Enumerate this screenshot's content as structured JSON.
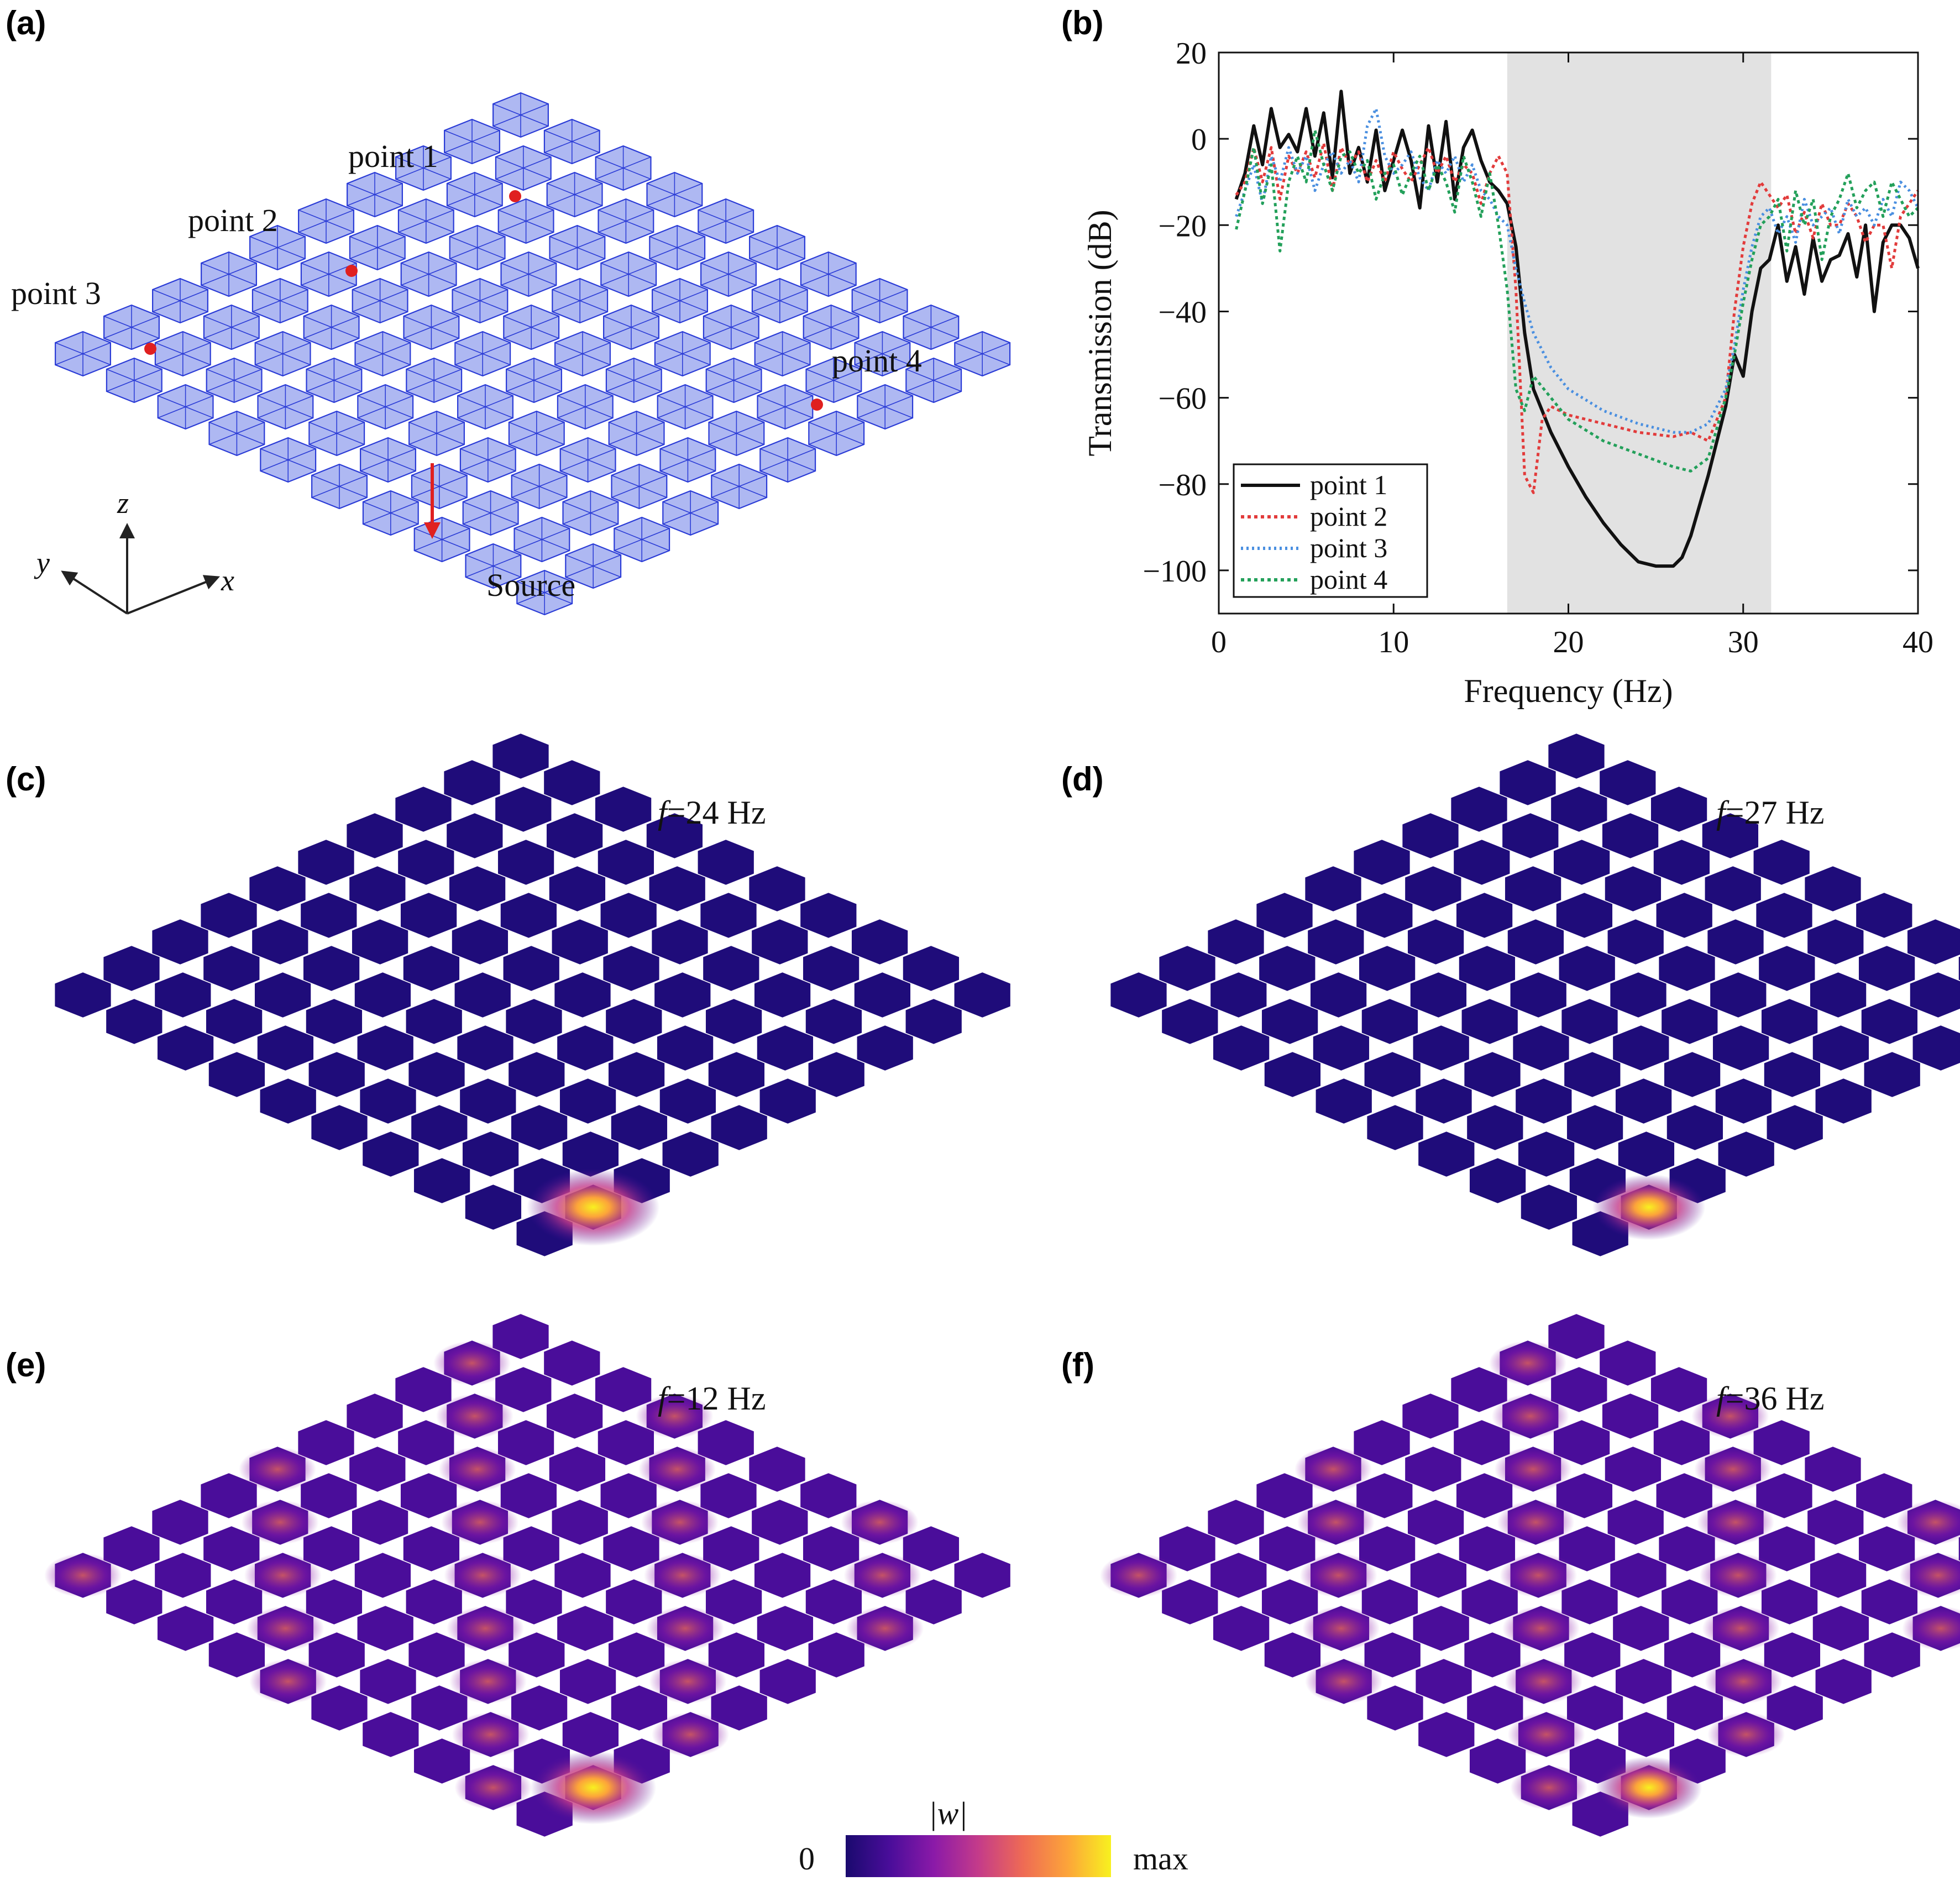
{
  "figure": {
    "panels": {
      "a": {
        "label": "(a)",
        "points": [
          "point 1",
          "point 2",
          "point 3",
          "point 4"
        ],
        "source_label": "Source",
        "axes": {
          "x": "x",
          "y": "y",
          "z": "z"
        },
        "colors": {
          "plate": "#aeb8f2",
          "edge": "#2a3bd6",
          "marker": "#e02020"
        }
      },
      "b": {
        "label": "(b)"
      },
      "c": {
        "label": "(c)",
        "freq_prefix": "f",
        "freq_value": "=24 Hz",
        "source_intensity": 1.0,
        "field": "localized"
      },
      "d": {
        "label": "(d)",
        "freq_prefix": "f",
        "freq_value": "=27 Hz",
        "source_intensity": 0.85,
        "field": "localized"
      },
      "e": {
        "label": "(e)",
        "freq_prefix": "f",
        "freq_value": "=12 Hz",
        "source_intensity": 0.95,
        "field": "propagating"
      },
      "f": {
        "label": "(f)",
        "freq_prefix": "f",
        "freq_value": "=36 Hz",
        "source_intensity": 0.8,
        "field": "propagating"
      }
    },
    "colorbar": {
      "title": "|w|",
      "min_label": "0",
      "max_label": "max",
      "stops": [
        "#1a0a6e",
        "#4a0d9a",
        "#8b1aa8",
        "#c43b8a",
        "#ee6a55",
        "#fca33a",
        "#f8f11f"
      ]
    }
  },
  "chart_data": {
    "type": "line",
    "xlabel": "Frequency (Hz)",
    "ylabel": "Transmission (dB)",
    "xlim": [
      0,
      40
    ],
    "ylim": [
      -110,
      20
    ],
    "xticks": [
      0,
      10,
      20,
      30,
      40
    ],
    "yticks": [
      20,
      0,
      -20,
      -40,
      -60,
      -80,
      -100
    ],
    "bandgap": {
      "start": 16.5,
      "end": 31.6,
      "color": "#e2e2e2"
    },
    "legend_position": "bottom-left",
    "series": [
      {
        "name": "point 1",
        "color": "#111111",
        "style": "solid",
        "x": [
          1.0,
          1.5,
          2.0,
          2.5,
          3.0,
          3.5,
          4.0,
          4.5,
          5.0,
          5.5,
          6.0,
          6.5,
          7.0,
          7.5,
          8.0,
          8.5,
          9.0,
          9.5,
          10.0,
          10.5,
          11.0,
          11.5,
          12.0,
          12.5,
          13.0,
          13.5,
          14.0,
          14.5,
          15.0,
          15.5,
          16.0,
          16.5,
          17.0,
          17.5,
          18.0,
          19.0,
          20.0,
          21.0,
          22.0,
          23.0,
          24.0,
          25.0,
          26.0,
          26.5,
          27.0,
          28.0,
          29.0,
          29.5,
          30.0,
          30.5,
          31.0,
          31.5,
          32.0,
          32.5,
          33.0,
          33.5,
          34.0,
          34.5,
          35.0,
          35.5,
          36.0,
          36.5,
          37.0,
          37.5,
          38.0,
          38.5,
          39.0,
          39.5,
          40.0
        ],
        "y": [
          -14,
          -8,
          3,
          -6,
          7,
          -2,
          1,
          -3,
          7,
          -4,
          6,
          -9,
          11,
          -8,
          -2,
          -10,
          2,
          -12,
          -5,
          2,
          -5,
          -16,
          3,
          -10,
          4,
          -14,
          -2,
          2,
          -5,
          -10,
          -12,
          -15,
          -25,
          -45,
          -58,
          -68,
          -76,
          -83,
          -89,
          -94,
          -98,
          -99,
          -99,
          -97,
          -92,
          -78,
          -62,
          -50,
          -55,
          -40,
          -30,
          -28,
          -20,
          -33,
          -25,
          -36,
          -23,
          -33,
          -28,
          -27,
          -22,
          -32,
          -20,
          -40,
          -24,
          -20,
          -20,
          -23,
          -30
        ]
      },
      {
        "name": "point 2",
        "color": "#e23b3b",
        "style": "dotted",
        "x": [
          1.0,
          1.5,
          2.0,
          2.5,
          3.0,
          3.5,
          4.0,
          4.5,
          5.0,
          5.5,
          6.0,
          6.5,
          7.0,
          7.5,
          8.0,
          8.5,
          9.0,
          9.5,
          10.0,
          10.5,
          11.0,
          11.5,
          12.0,
          12.5,
          13.0,
          13.5,
          14.0,
          14.5,
          15.0,
          15.5,
          16.0,
          16.5,
          17.0,
          17.5,
          18.0,
          18.5,
          19.0,
          20.0,
          22.0,
          24.0,
          26.0,
          27.0,
          28.0,
          29.0,
          29.5,
          30.0,
          30.5,
          31.0,
          31.5,
          32.0,
          32.5,
          33.0,
          33.5,
          34.0,
          34.5,
          35.0,
          35.5,
          36.0,
          36.5,
          37.0,
          37.5,
          38.0,
          38.5,
          39.0,
          39.5,
          40.0
        ],
        "y": [
          -13,
          -10,
          -2,
          -10,
          -2,
          -14,
          -4,
          -8,
          -3,
          -9,
          -1,
          -12,
          -2,
          -6,
          -3,
          -10,
          -5,
          -10,
          -3,
          -7,
          -10,
          -6,
          -2,
          -8,
          -4,
          -10,
          -6,
          -8,
          -15,
          -8,
          -4,
          -8,
          -35,
          -78,
          -82,
          -65,
          -62,
          -64,
          -66,
          -68,
          -69,
          -68,
          -70,
          -60,
          -40,
          -25,
          -15,
          -10,
          -13,
          -16,
          -13,
          -22,
          -17,
          -23,
          -15,
          -20,
          -20,
          -15,
          -18,
          -24,
          -20,
          -20,
          -30,
          -18,
          -15,
          -12
        ]
      },
      {
        "name": "point 3",
        "color": "#4a8fe0",
        "style": "dotted",
        "x": [
          1.0,
          1.5,
          2.0,
          2.5,
          3.0,
          3.5,
          4.0,
          4.5,
          5.0,
          5.5,
          6.0,
          6.5,
          7.0,
          7.5,
          8.0,
          8.5,
          9.0,
          9.5,
          10.0,
          10.5,
          11.0,
          11.5,
          12.0,
          12.5,
          13.0,
          13.5,
          14.0,
          14.5,
          15.0,
          15.5,
          16.0,
          16.5,
          17.0,
          17.5,
          18.0,
          19.0,
          20.0,
          22.0,
          24.0,
          26.0,
          27.0,
          28.0,
          29.0,
          29.5,
          30.0,
          30.5,
          31.0,
          31.5,
          32.0,
          32.5,
          33.0,
          33.5,
          34.0,
          34.5,
          35.0,
          35.5,
          36.0,
          36.5,
          37.0,
          37.5,
          38.0,
          38.5,
          39.0,
          39.5,
          40.0
        ],
        "y": [
          -18,
          -12,
          -6,
          -15,
          -4,
          -10,
          -2,
          -8,
          -4,
          -12,
          -6,
          -3,
          -8,
          -5,
          -10,
          3,
          7,
          -4,
          -8,
          -6,
          -3,
          -9,
          -12,
          -5,
          -8,
          -4,
          -10,
          -6,
          -12,
          -14,
          -18,
          -20,
          -30,
          -38,
          -45,
          -53,
          -58,
          -63,
          -66,
          -68,
          -68,
          -66,
          -58,
          -48,
          -35,
          -25,
          -18,
          -16,
          -22,
          -18,
          -24,
          -14,
          -20,
          -18,
          -16,
          -22,
          -14,
          -18,
          -16,
          -20,
          -14,
          -18,
          -10,
          -12,
          -16
        ]
      },
      {
        "name": "point 4",
        "color": "#23a05a",
        "style": "dotted",
        "x": [
          1.0,
          1.5,
          2.0,
          2.5,
          3.0,
          3.5,
          4.0,
          4.5,
          5.0,
          5.5,
          6.0,
          6.5,
          7.0,
          7.5,
          8.0,
          8.5,
          9.0,
          9.5,
          10.0,
          10.5,
          11.0,
          11.5,
          12.0,
          12.5,
          13.0,
          13.5,
          14.0,
          14.5,
          15.0,
          15.5,
          16.0,
          16.5,
          17.0,
          17.5,
          18.0,
          19.0,
          20.0,
          22.0,
          24.0,
          26.0,
          27.0,
          28.0,
          29.0,
          29.5,
          30.0,
          30.5,
          31.0,
          31.5,
          32.0,
          32.5,
          33.0,
          33.5,
          34.0,
          34.5,
          35.0,
          35.5,
          36.0,
          36.5,
          37.0,
          37.5,
          38.0,
          38.5,
          39.0,
          39.5,
          40.0
        ],
        "y": [
          -21,
          -12,
          -2,
          -15,
          -6,
          -26,
          -10,
          -4,
          -10,
          2,
          -6,
          -12,
          -4,
          -3,
          -8,
          -5,
          -14,
          -8,
          -6,
          -13,
          -8,
          -4,
          -12,
          -6,
          -10,
          -17,
          -4,
          -10,
          -18,
          -8,
          -20,
          -35,
          -58,
          -63,
          -55,
          -60,
          -65,
          -70,
          -73,
          -76,
          -77,
          -74,
          -60,
          -50,
          -38,
          -28,
          -20,
          -18,
          -14,
          -26,
          -12,
          -20,
          -14,
          -28,
          -18,
          -14,
          -8,
          -16,
          -12,
          -10,
          -18,
          -10,
          -14,
          -18,
          -16
        ]
      }
    ]
  }
}
